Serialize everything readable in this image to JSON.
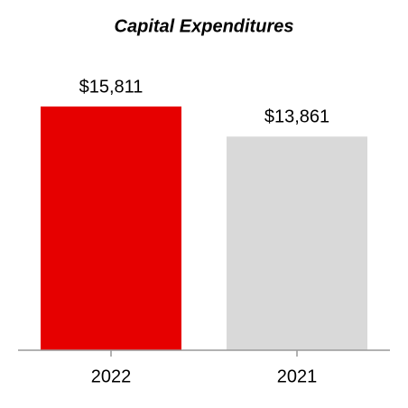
{
  "chart_data": {
    "type": "bar",
    "title": "Capital Expenditures",
    "categories": [
      "2022",
      "2021"
    ],
    "values": [
      15811,
      13861
    ],
    "value_labels": [
      "$15,811",
      "$13,861"
    ],
    "colors": [
      "#e60000",
      "#d9d9d9"
    ]
  }
}
